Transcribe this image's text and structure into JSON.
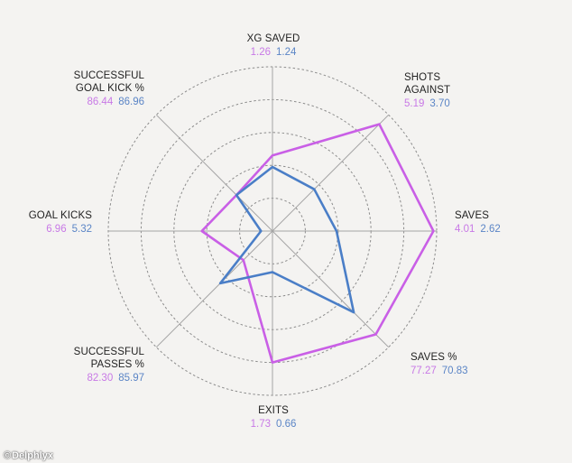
{
  "chart_data": {
    "type": "radar",
    "axes": [
      {
        "name": "XG SAVED",
        "v1": "1.26",
        "v2": "1.24"
      },
      {
        "name": "SHOTS\nAGAINST",
        "v1": "5.19",
        "v2": "3.70"
      },
      {
        "name": "SAVES",
        "v1": "4.01",
        "v2": "2.62"
      },
      {
        "name": "SAVES %",
        "v1": "77.27",
        "v2": "70.83"
      },
      {
        "name": "EXITS",
        "v1": "1.73",
        "v2": "0.66"
      },
      {
        "name": "SUCCESSFUL\nPASSES %",
        "v1": "82.30",
        "v2": "85.97"
      },
      {
        "name": "GOAL KICKS",
        "v1": "6.96",
        "v2": "5.32"
      },
      {
        "name": "SUCCESSFUL\nGOAL KICK %",
        "v1": "86.44",
        "v2": "86.96"
      }
    ],
    "series": [
      {
        "values": [
          0.46,
          0.92,
          0.98,
          0.89,
          0.8,
          0.25,
          0.43,
          0.31
        ],
        "color": "#c95fe6"
      },
      {
        "values": [
          0.39,
          0.36,
          0.39,
          0.7,
          0.25,
          0.45,
          0.07,
          0.31
        ],
        "color": "#4a7ec7"
      }
    ],
    "rings": 5,
    "scale_note": "values normalized 0-1 (relative radius)"
  },
  "watermark": {
    "text": "Delphlyx",
    "symbol": "©"
  },
  "colors": {
    "series1": "#c95fe6",
    "series2": "#4a7ec7",
    "grid": "#999999"
  }
}
